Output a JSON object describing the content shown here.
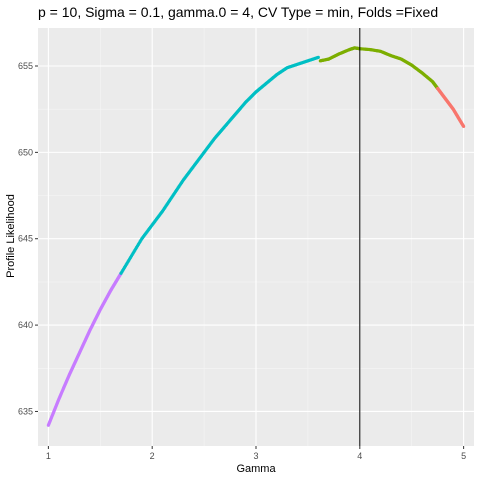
{
  "chart_data": {
    "type": "scatter",
    "title": "p = 10, Sigma = 0.1, gamma.0 = 4, CV Type = min, Folds =Fixed",
    "xlabel": "Gamma",
    "ylabel": "Profile Likelihood",
    "xlim": [
      0.9,
      5.1
    ],
    "ylim": [
      633.0,
      657.2
    ],
    "x_ticks": [
      1,
      2,
      3,
      4,
      5
    ],
    "x_tick_labels": [
      "1",
      "2",
      "3",
      "4",
      "5"
    ],
    "y_ticks": [
      635,
      640,
      645,
      650,
      655
    ],
    "y_tick_labels": [
      "635",
      "640",
      "645",
      "650",
      "655"
    ],
    "grid": true,
    "legend": "none",
    "background": "#ebebeb",
    "vline": {
      "x": 4.0,
      "color": "#000000"
    },
    "series": [
      {
        "color": "#c77cff",
        "x": [
          1.0,
          1.05,
          1.1,
          1.15,
          1.2,
          1.25,
          1.3,
          1.35,
          1.4,
          1.45,
          1.5,
          1.55,
          1.6,
          1.65,
          1.7
        ],
        "y": [
          634.2,
          634.95,
          635.7,
          636.4,
          637.1,
          637.75,
          638.4,
          639.05,
          639.7,
          640.3,
          640.9,
          641.45,
          642.0,
          642.5,
          643.0
        ]
      },
      {
        "color": "#00bfc4",
        "x": [
          1.7,
          1.8,
          1.9,
          2.0,
          2.1,
          2.2,
          2.3,
          2.4,
          2.5,
          2.6,
          2.7,
          2.8,
          2.9,
          3.0,
          3.1,
          3.2,
          3.3,
          3.4,
          3.5,
          3.6
        ],
        "y": [
          643.0,
          644.0,
          645.0,
          645.8,
          646.6,
          647.5,
          648.4,
          649.2,
          650.0,
          650.8,
          651.5,
          652.2,
          652.9,
          653.5,
          654.0,
          654.5,
          654.9,
          655.1,
          655.3,
          655.5
        ]
      },
      {
        "color": "#7cae00",
        "x": [
          3.62,
          3.7,
          3.8,
          3.9,
          3.95,
          4.0,
          4.1,
          4.2,
          4.3,
          4.4,
          4.5,
          4.6,
          4.7,
          4.75
        ],
        "y": [
          655.3,
          655.4,
          655.7,
          655.95,
          656.05,
          656.0,
          655.95,
          655.85,
          655.6,
          655.4,
          655.05,
          654.6,
          654.1,
          653.7
        ]
      },
      {
        "color": "#f8766d",
        "x": [
          4.75,
          4.8,
          4.85,
          4.9,
          4.95,
          5.0
        ],
        "y": [
          653.7,
          653.3,
          652.9,
          652.5,
          652.0,
          651.5
        ]
      }
    ]
  }
}
